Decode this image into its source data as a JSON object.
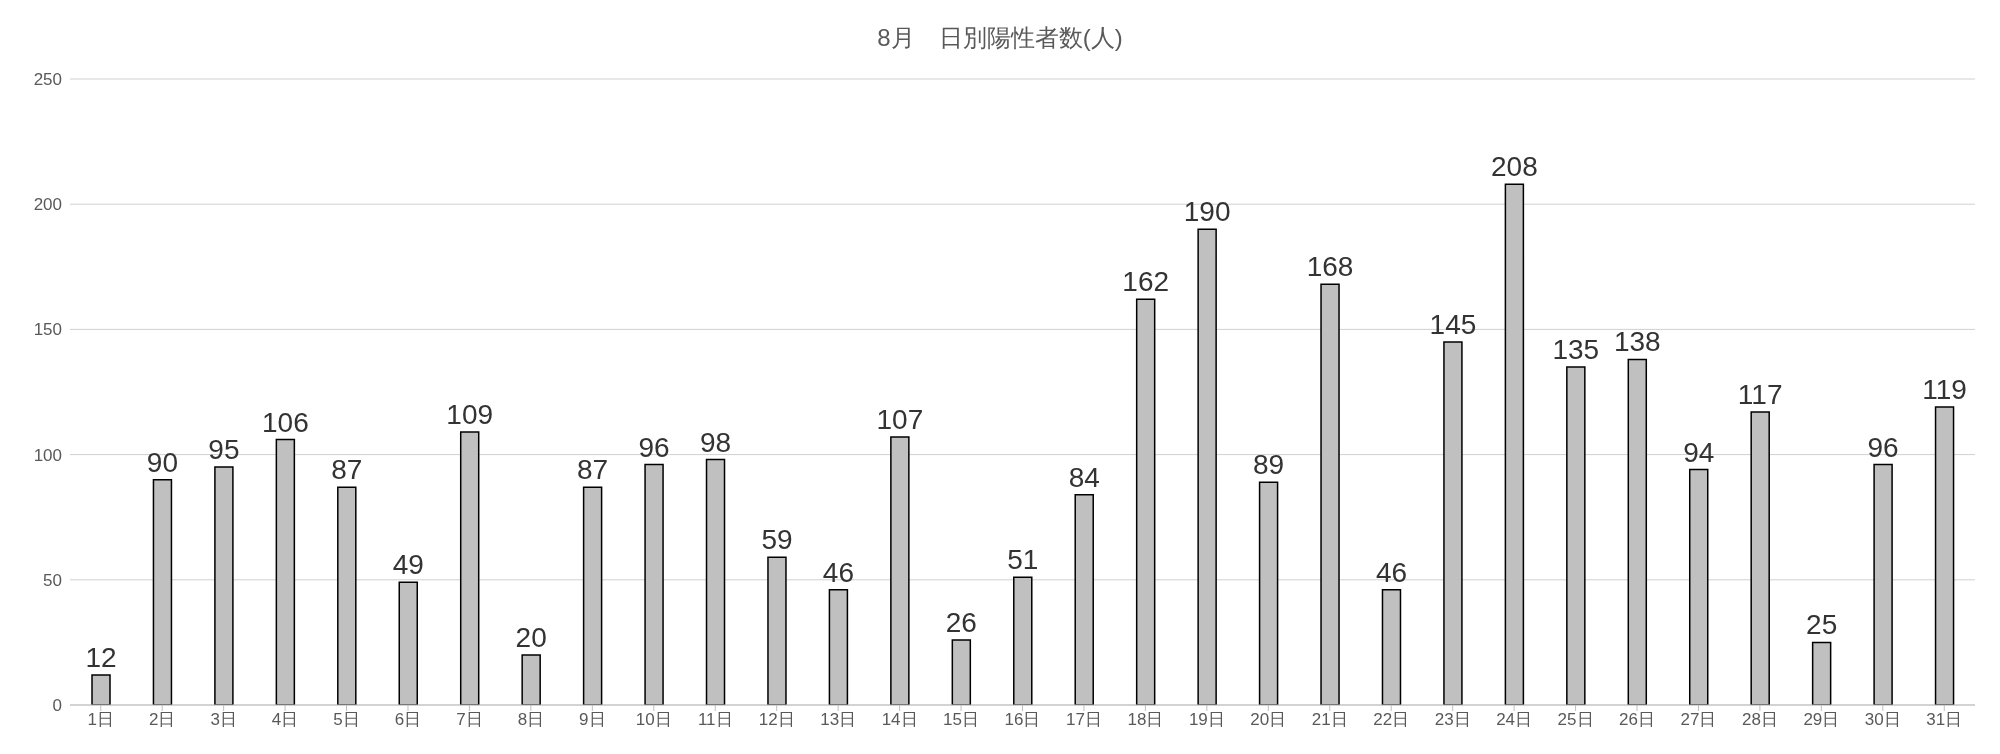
{
  "chart_data": {
    "type": "bar",
    "title": "8月　日別陽性者数(人)",
    "categories": [
      "1日",
      "2日",
      "3日",
      "4日",
      "5日",
      "6日",
      "7日",
      "8日",
      "9日",
      "10日",
      "11日",
      "12日",
      "13日",
      "14日",
      "15日",
      "16日",
      "17日",
      "18日",
      "19日",
      "20日",
      "21日",
      "22日",
      "23日",
      "24日",
      "25日",
      "26日",
      "27日",
      "28日",
      "29日",
      "30日",
      "31日"
    ],
    "values": [
      12,
      90,
      95,
      106,
      87,
      49,
      109,
      20,
      87,
      96,
      98,
      59,
      46,
      107,
      26,
      51,
      84,
      162,
      190,
      89,
      168,
      46,
      145,
      208,
      135,
      138,
      94,
      117,
      25,
      96,
      119
    ],
    "color": "#c0c0c0",
    "ylim": [
      0,
      250
    ],
    "yticks": [
      0,
      50,
      100,
      150,
      200,
      250
    ],
    "grid": "y",
    "data_labels": true
  }
}
